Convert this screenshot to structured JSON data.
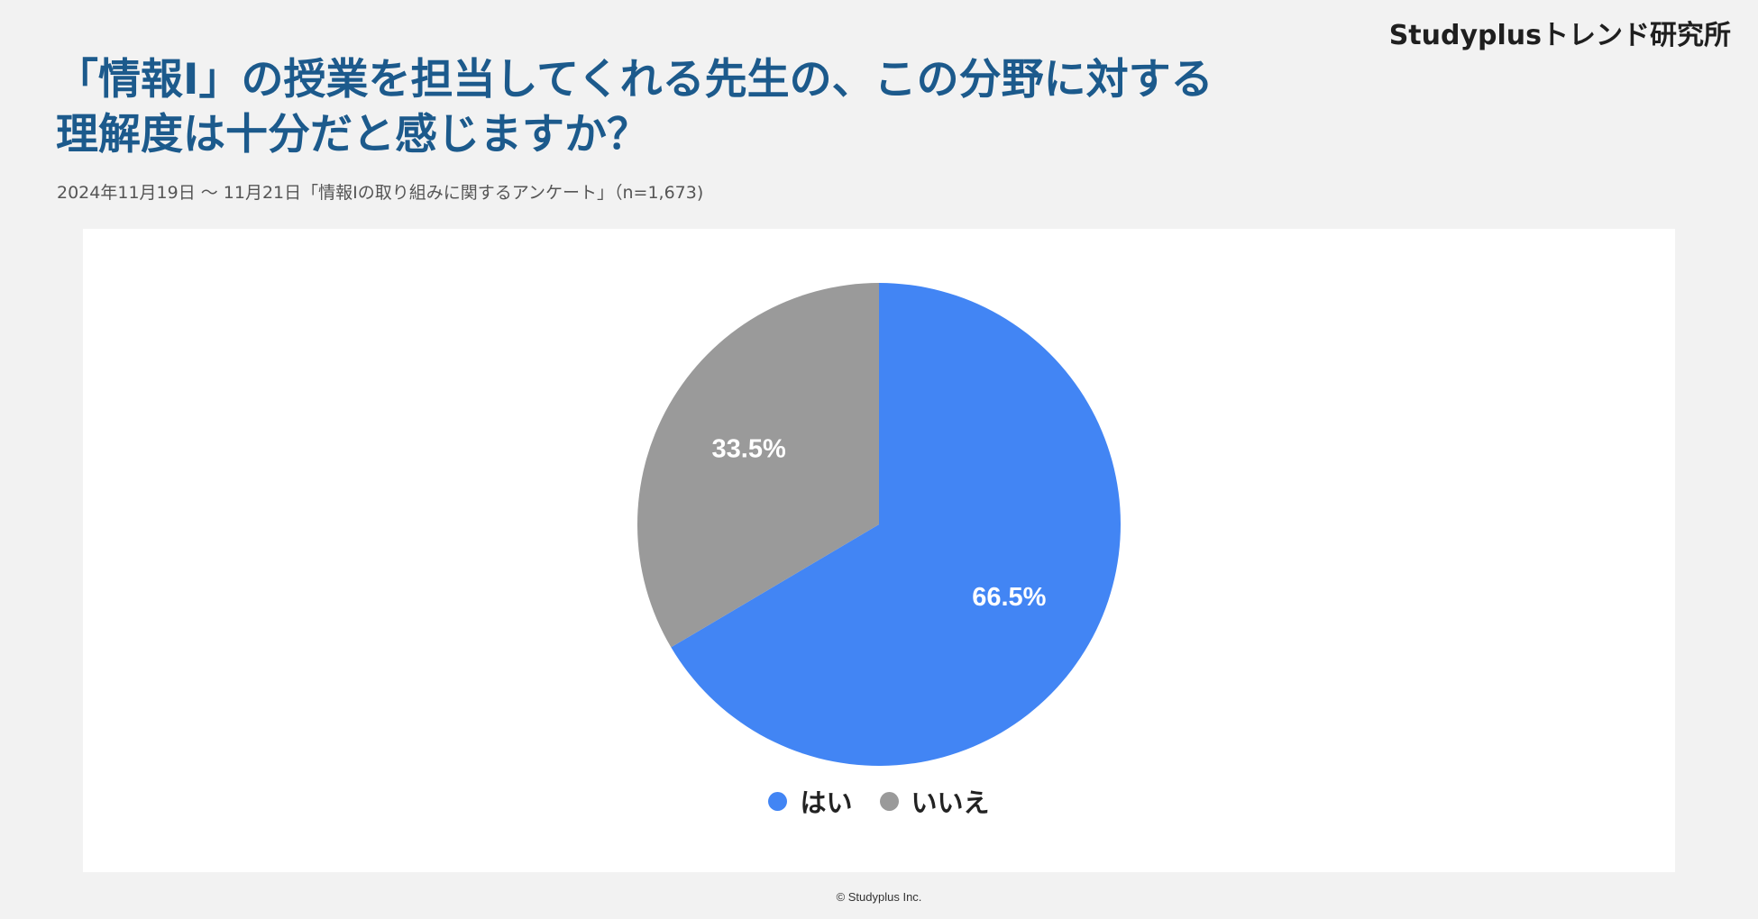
{
  "brand": "Studyplusトレンド研究所",
  "title_line1": "「情報Ⅰ」の授業を担当してくれる先生の、この分野に対する",
  "title_line2": "理解度は十分だと感じますか？",
  "subtitle": "2024年11月19日 〜 11月21日「情報Ⅰの取り組みに関するアンケート」（n=1,673)",
  "footer": "© Studyplus Inc.",
  "chart_data": {
    "type": "pie",
    "categories": [
      "はい",
      "いいえ"
    ],
    "values": [
      66.5,
      33.5
    ],
    "labels": [
      "66.5%",
      "33.5%"
    ],
    "colors": [
      "#4285f4",
      "#9a9a9a"
    ],
    "legend_position": "bottom",
    "start": "top, clockwise"
  }
}
